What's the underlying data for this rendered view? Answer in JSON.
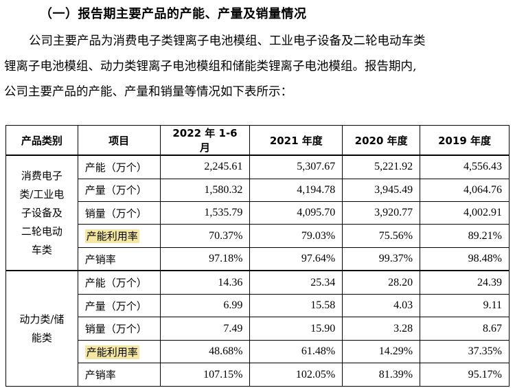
{
  "heading": "（一）报告期主要产品的产能、产量及销量情况",
  "paragraph": {
    "line1": "公司主要产品为消费电子类锂离子电池模组、工业电子设备及二轮电动车类",
    "line2": "锂离子电池模组、动力类锂离子电池模组和储能类锂离子电池模组。报告期内,",
    "line3": "公司主要产品的产能、产量和销量等情况如下表所示："
  },
  "table": {
    "headers": [
      "产品类别",
      "项目",
      "2022 年 1-6 月",
      "2021 年度",
      "2020 年度",
      "2019 年度"
    ],
    "groups": [
      {
        "category": "消费电子类/工业电子设备及二轮电动车类",
        "rows": [
          {
            "item": "产能（万个）",
            "values": [
              "2,245.61",
              "5,307.67",
              "5,221.92",
              "4,556.43"
            ]
          },
          {
            "item": "产量（万个）",
            "values": [
              "1,580.32",
              "4,194.78",
              "3,945.49",
              "4,064.76"
            ]
          },
          {
            "item": "销量（万个）",
            "values": [
              "1,535.79",
              "4,095.70",
              "3,920.77",
              "4,002.91"
            ]
          },
          {
            "item": "产能利用率",
            "values": [
              "70.37%",
              "79.03%",
              "75.56%",
              "89.21%"
            ]
          },
          {
            "item": "产销率",
            "values": [
              "97.18%",
              "97.64%",
              "99.37%",
              "98.48%"
            ]
          }
        ]
      },
      {
        "category": "动力类/储能类",
        "rows": [
          {
            "item": "产能（万个）",
            "values": [
              "14.36",
              "25.34",
              "28.20",
              "24.39"
            ]
          },
          {
            "item": "产量（万个）",
            "values": [
              "6.99",
              "15.58",
              "4.03",
              "9.11"
            ]
          },
          {
            "item": "销量（万个）",
            "values": [
              "7.49",
              "15.90",
              "3.28",
              "8.67"
            ]
          },
          {
            "item": "产能利用率",
            "values": [
              "48.68%",
              "61.48%",
              "14.29%",
              "37.35%"
            ]
          },
          {
            "item": "产销率",
            "values": [
              "107.15%",
              "102.05%",
              "81.39%",
              "95.17%"
            ]
          }
        ]
      }
    ],
    "highlight_color": "#f3e7a3"
  }
}
